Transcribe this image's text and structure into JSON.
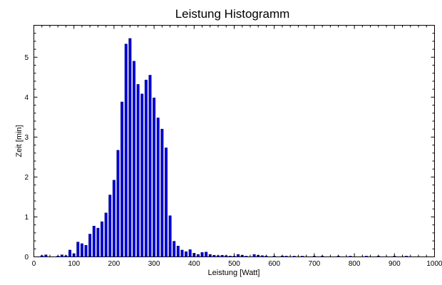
{
  "chart_data": {
    "type": "bar",
    "title": "Leistung Histogramm",
    "xlabel": "Leistung [Watt]",
    "ylabel": "Zeit [min]",
    "xlim": [
      0,
      1000
    ],
    "ylim": [
      0,
      5.8
    ],
    "x_ticks": [
      0,
      100,
      200,
      300,
      400,
      500,
      600,
      700,
      800,
      900,
      1000
    ],
    "y_ticks": [
      0,
      1,
      2,
      3,
      4,
      5
    ],
    "bar_width": 6,
    "bar_color": "#0000ee",
    "bar_edge_color": "#000066",
    "grid": false,
    "x": [
      20,
      30,
      60,
      70,
      80,
      90,
      100,
      110,
      120,
      130,
      140,
      150,
      160,
      170,
      180,
      190,
      200,
      210,
      220,
      230,
      240,
      250,
      260,
      270,
      280,
      290,
      300,
      310,
      320,
      330,
      340,
      350,
      360,
      370,
      380,
      390,
      400,
      410,
      420,
      430,
      440,
      450,
      460,
      470,
      480,
      490,
      500,
      510,
      520,
      530,
      550,
      560,
      570,
      580,
      600,
      620,
      630,
      650,
      670,
      700,
      720,
      760,
      790,
      830,
      860,
      900,
      930
    ],
    "values": [
      0.03,
      0.05,
      0.01,
      0.05,
      0.03,
      0.17,
      0.08,
      0.37,
      0.33,
      0.29,
      0.57,
      0.77,
      0.72,
      0.88,
      1.1,
      1.55,
      1.92,
      2.67,
      3.88,
      5.33,
      5.47,
      4.9,
      4.32,
      4.08,
      4.43,
      4.55,
      3.98,
      3.48,
      3.2,
      2.73,
      1.03,
      0.39,
      0.27,
      0.17,
      0.13,
      0.18,
      0.09,
      0.06,
      0.11,
      0.12,
      0.06,
      0.04,
      0.03,
      0.04,
      0.03,
      0.02,
      0.01,
      0.06,
      0.04,
      0.01,
      0.06,
      0.04,
      0.03,
      0.01,
      0.01,
      0.02,
      0.01,
      0.01,
      0.01,
      0.01,
      0.01,
      0.01,
      0.01,
      0.01,
      0.01,
      0.01,
      0.01
    ]
  }
}
